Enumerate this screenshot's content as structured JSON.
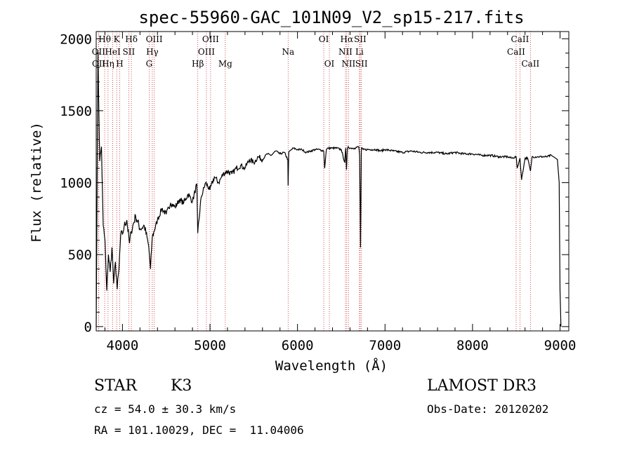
{
  "chart_data": {
    "type": "line",
    "title": "spec-55960-GAC_101N09_V2_sp15-217.fits",
    "xlabel": "Wavelength (Å)",
    "ylabel": "Flux (relative)",
    "xlim": [
      3700,
      9100
    ],
    "ylim": [
      -30,
      2050
    ],
    "x_ticks": [
      4000,
      5000,
      6000,
      7000,
      8000,
      9000
    ],
    "y_ticks": [
      0,
      500,
      1000,
      1500,
      2000
    ],
    "series": [
      {
        "name": "flux",
        "x": [
          3700,
          3720,
          3740,
          3760,
          3780,
          3800,
          3820,
          3840,
          3860,
          3880,
          3900,
          3920,
          3940,
          3960,
          3980,
          4000,
          4020,
          4050,
          4080,
          4100,
          4150,
          4200,
          4250,
          4300,
          4320,
          4340,
          4400,
          4450,
          4500,
          4550,
          4600,
          4650,
          4700,
          4750,
          4800,
          4850,
          4860,
          4900,
          4950,
          5000,
          5050,
          5100,
          5150,
          5200,
          5250,
          5300,
          5350,
          5400,
          5450,
          5500,
          5550,
          5600,
          5650,
          5700,
          5750,
          5800,
          5850,
          5890,
          5893,
          5900,
          5950,
          6000,
          6050,
          6100,
          6150,
          6200,
          6250,
          6300,
          6310,
          6330,
          6350,
          6400,
          6450,
          6500,
          6540,
          6550,
          6560,
          6570,
          6580,
          6600,
          6650,
          6700,
          6710,
          6720,
          6730,
          6750,
          6800,
          6850,
          6900,
          6950,
          7000,
          7100,
          7200,
          7300,
          7400,
          7500,
          7600,
          7700,
          7800,
          7900,
          8000,
          8100,
          8200,
          8300,
          8400,
          8450,
          8498,
          8510,
          8542,
          8560,
          8600,
          8630,
          8662,
          8680,
          8750,
          8850,
          8900,
          8950,
          8970,
          8990,
          9000,
          9010
        ],
        "values": [
          0,
          1900,
          1150,
          1250,
          700,
          600,
          250,
          500,
          380,
          550,
          300,
          450,
          260,
          400,
          640,
          640,
          700,
          740,
          580,
          660,
          770,
          680,
          700,
          560,
          400,
          620,
          740,
          820,
          780,
          860,
          830,
          880,
          860,
          920,
          870,
          990,
          650,
          900,
          1000,
          950,
          1040,
          1000,
          1060,
          1080,
          1060,
          1100,
          1120,
          1100,
          1160,
          1140,
          1180,
          1160,
          1200,
          1190,
          1220,
          1200,
          1210,
          1160,
          980,
          1210,
          1240,
          1230,
          1230,
          1210,
          1220,
          1230,
          1230,
          1220,
          1100,
          1230,
          1240,
          1240,
          1240,
          1230,
          1140,
          1240,
          1090,
          1240,
          1250,
          1240,
          1240,
          1250,
          1190,
          550,
          1240,
          1230,
          1230,
          1230,
          1230,
          1220,
          1230,
          1220,
          1210,
          1220,
          1210,
          1210,
          1210,
          1200,
          1210,
          1200,
          1200,
          1190,
          1190,
          1180,
          1180,
          1170,
          1180,
          1100,
          1170,
          1020,
          1170,
          1170,
          1080,
          1180,
          1180,
          1180,
          1190,
          1170,
          1160,
          1000,
          250,
          0
        ]
      }
    ],
    "spectral_lines": [
      {
        "label": "Hθ",
        "wavelength": 3797,
        "row": 0
      },
      {
        "label": "OII",
        "wavelength": 3727,
        "row": 1
      },
      {
        "label": "OII",
        "wavelength": 3729,
        "row": 2
      },
      {
        "label": "Hη",
        "wavelength": 3835,
        "row": 2
      },
      {
        "label": "HeI",
        "wavelength": 3889,
        "row": 1
      },
      {
        "label": "K",
        "wavelength": 3934,
        "row": 0
      },
      {
        "label": "H",
        "wavelength": 3969,
        "row": 2
      },
      {
        "label": "SII",
        "wavelength": 4072,
        "row": 1
      },
      {
        "label": "Hδ",
        "wavelength": 4102,
        "row": 0
      },
      {
        "label": "OIII",
        "wavelength": 4363,
        "row": 0
      },
      {
        "label": "Hγ",
        "wavelength": 4341,
        "row": 1
      },
      {
        "label": "G",
        "wavelength": 4305,
        "row": 2
      },
      {
        "label": "Hβ",
        "wavelength": 4861,
        "row": 2
      },
      {
        "label": "OIII",
        "wavelength": 5007,
        "row": 0
      },
      {
        "label": "OIII",
        "wavelength": 4959,
        "row": 1
      },
      {
        "label": "Mg",
        "wavelength": 5175,
        "row": 2
      },
      {
        "label": "Na",
        "wavelength": 5893,
        "row": 1
      },
      {
        "label": "OI",
        "wavelength": 6300,
        "row": 0
      },
      {
        "label": "OI",
        "wavelength": 6364,
        "row": 2
      },
      {
        "label": "Hα",
        "wavelength": 6563,
        "row": 0
      },
      {
        "label": "NII",
        "wavelength": 6548,
        "row": 1
      },
      {
        "label": "NII",
        "wavelength": 6583,
        "row": 2
      },
      {
        "label": "SII",
        "wavelength": 6716,
        "row": 0
      },
      {
        "label": "Li",
        "wavelength": 6708,
        "row": 1
      },
      {
        "label": "SII",
        "wavelength": 6731,
        "row": 2
      },
      {
        "label": "CaII",
        "wavelength": 8542,
        "row": 0
      },
      {
        "label": "CaII",
        "wavelength": 8498,
        "row": 1
      },
      {
        "label": "CaII",
        "wavelength": 8662,
        "row": 2
      }
    ]
  },
  "info": {
    "object_class": "STAR",
    "subclass": "K3",
    "survey": "LAMOST DR3",
    "redshift": "cz = 54.0 ± 30.3 km/s",
    "obs_date": "Obs-Date: 20120202",
    "coords": "RA = 101.10029, DEC =  11.04006"
  },
  "colors": {
    "line_marker": "#cc2222",
    "spectrum": "#000000",
    "background": "#ffffff"
  }
}
